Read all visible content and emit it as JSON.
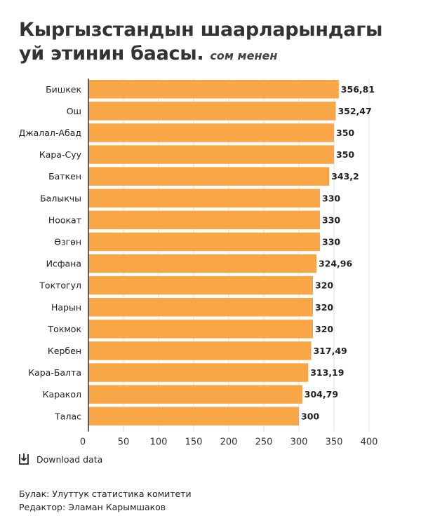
{
  "header": {
    "title": "Кыргызстандын шаарларындагы уй этинин баасы.",
    "subtitle": "сом менен"
  },
  "chart_data": {
    "type": "bar",
    "orientation": "horizontal",
    "title": "Кыргызстандын шаарларындагы уй этинин баасы.",
    "subtitle": "сом менен",
    "categories": [
      "Бишкек",
      "Ош",
      "Джалал-Абад",
      "Кара-Суу",
      "Баткен",
      "Балыкчы",
      "Ноокат",
      "Өзгөн",
      "Исфана",
      "Токтогул",
      "Нарын",
      "Токмок",
      "Кербен",
      "Кара-Балта",
      "Каракол",
      "Талас"
    ],
    "values": [
      356.81,
      352.47,
      350,
      350,
      343.2,
      330,
      330,
      330,
      324.96,
      320,
      320,
      320,
      317.49,
      313.19,
      304.79,
      300
    ],
    "value_labels": [
      "356,81",
      "352,47",
      "350",
      "350",
      "343,2",
      "330",
      "330",
      "330",
      "324,96",
      "320",
      "320",
      "320",
      "317,49",
      "313,19",
      "304,79",
      "300"
    ],
    "xlim": [
      0,
      400
    ],
    "x_ticks": [
      "0",
      "50",
      "100",
      "150",
      "200",
      "250",
      "300",
      "350",
      "400"
    ],
    "x_tick_values": [
      0,
      50,
      100,
      150,
      200,
      250,
      300,
      350,
      400
    ],
    "grid": true,
    "bar_color": "#f9a646"
  },
  "download": {
    "label": "Download data",
    "icon": "download-icon"
  },
  "footer": {
    "source": "Булак: Улуттук статистика комитети",
    "editor": "Редактор: Эламан Карымшаков"
  }
}
